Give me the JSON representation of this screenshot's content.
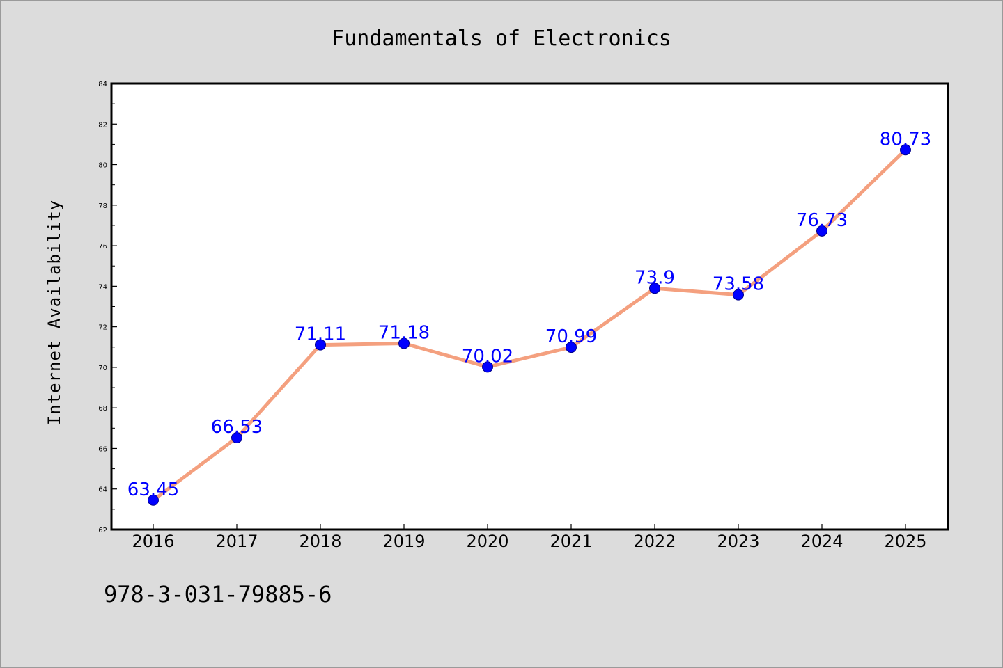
{
  "isbn": "978-3-031-79885-6",
  "colors": {
    "background": "#dcdcdc",
    "plot_background": "#ffffff",
    "line": "#f4a07f",
    "marker": "#0000ff",
    "data_label": "#0000ff"
  },
  "chart_data": {
    "type": "line",
    "title": "Fundamentals of Electronics",
    "xlabel": "",
    "ylabel": "Internet Availability",
    "categories": [
      "2016",
      "2017",
      "2018",
      "2019",
      "2020",
      "2021",
      "2022",
      "2023",
      "2024",
      "2025"
    ],
    "series": [
      {
        "values": [
          63.45,
          66.53,
          71.11,
          71.18,
          70.02,
          70.99,
          73.9,
          73.58,
          76.73,
          80.73
        ],
        "labels": [
          "63.45",
          "66.53",
          "71.11",
          "71.18",
          "70.02",
          "70.99",
          "73.9",
          "73.58",
          "76.73",
          "80.73"
        ]
      }
    ],
    "ylim": [
      62,
      84
    ],
    "yticks": [
      62,
      64,
      66,
      68,
      70,
      72,
      74,
      76,
      78,
      80,
      82,
      84
    ],
    "ytick_labels": [
      "62",
      "64",
      "66",
      "68",
      "70",
      "72",
      "74",
      "76",
      "78",
      "80",
      "82",
      "84"
    ],
    "grid": false,
    "legend": "none",
    "marker": "circle"
  }
}
